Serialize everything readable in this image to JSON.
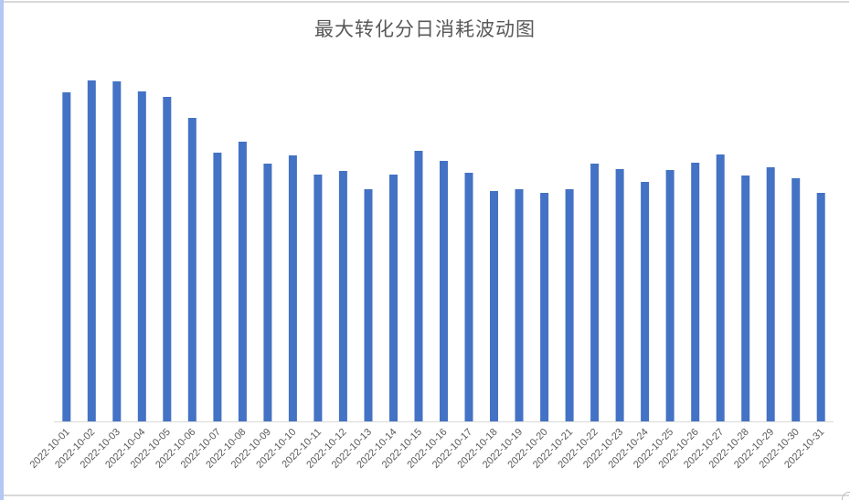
{
  "chart_data": {
    "type": "bar",
    "title": "最大转化分日消耗波动图",
    "xlabel": "",
    "ylabel": "",
    "y_axis_visible": false,
    "grid": false,
    "legend": null,
    "bar_color": "#4472c4",
    "note": "No y-axis shown; values are relative bar heights (pixels above baseline).",
    "categories": [
      "2022-10-01",
      "2022-10-02",
      "2022-10-03",
      "2022-10-04",
      "2022-10-05",
      "2022-10-06",
      "2022-10-07",
      "2022-10-08",
      "2022-10-09",
      "2022-10-10",
      "2022-10-11",
      "2022-10-12",
      "2022-10-13",
      "2022-10-14",
      "2022-10-15",
      "2022-10-16",
      "2022-10-17",
      "2022-10-18",
      "2022-10-19",
      "2022-10-20",
      "2022-10-21",
      "2022-10-22",
      "2022-10-23",
      "2022-10-24",
      "2022-10-25",
      "2022-10-26",
      "2022-10-27",
      "2022-10-28",
      "2022-10-29",
      "2022-10-30",
      "2022-10-31"
    ],
    "values": [
      360,
      373,
      372,
      361,
      355,
      332,
      294,
      306,
      282,
      291,
      270,
      274,
      254,
      270,
      296,
      285,
      272,
      252,
      254,
      250,
      254,
      282,
      276,
      262,
      275,
      283,
      292,
      269,
      278,
      266,
      250
    ],
    "ylim": [
      0,
      373
    ]
  }
}
